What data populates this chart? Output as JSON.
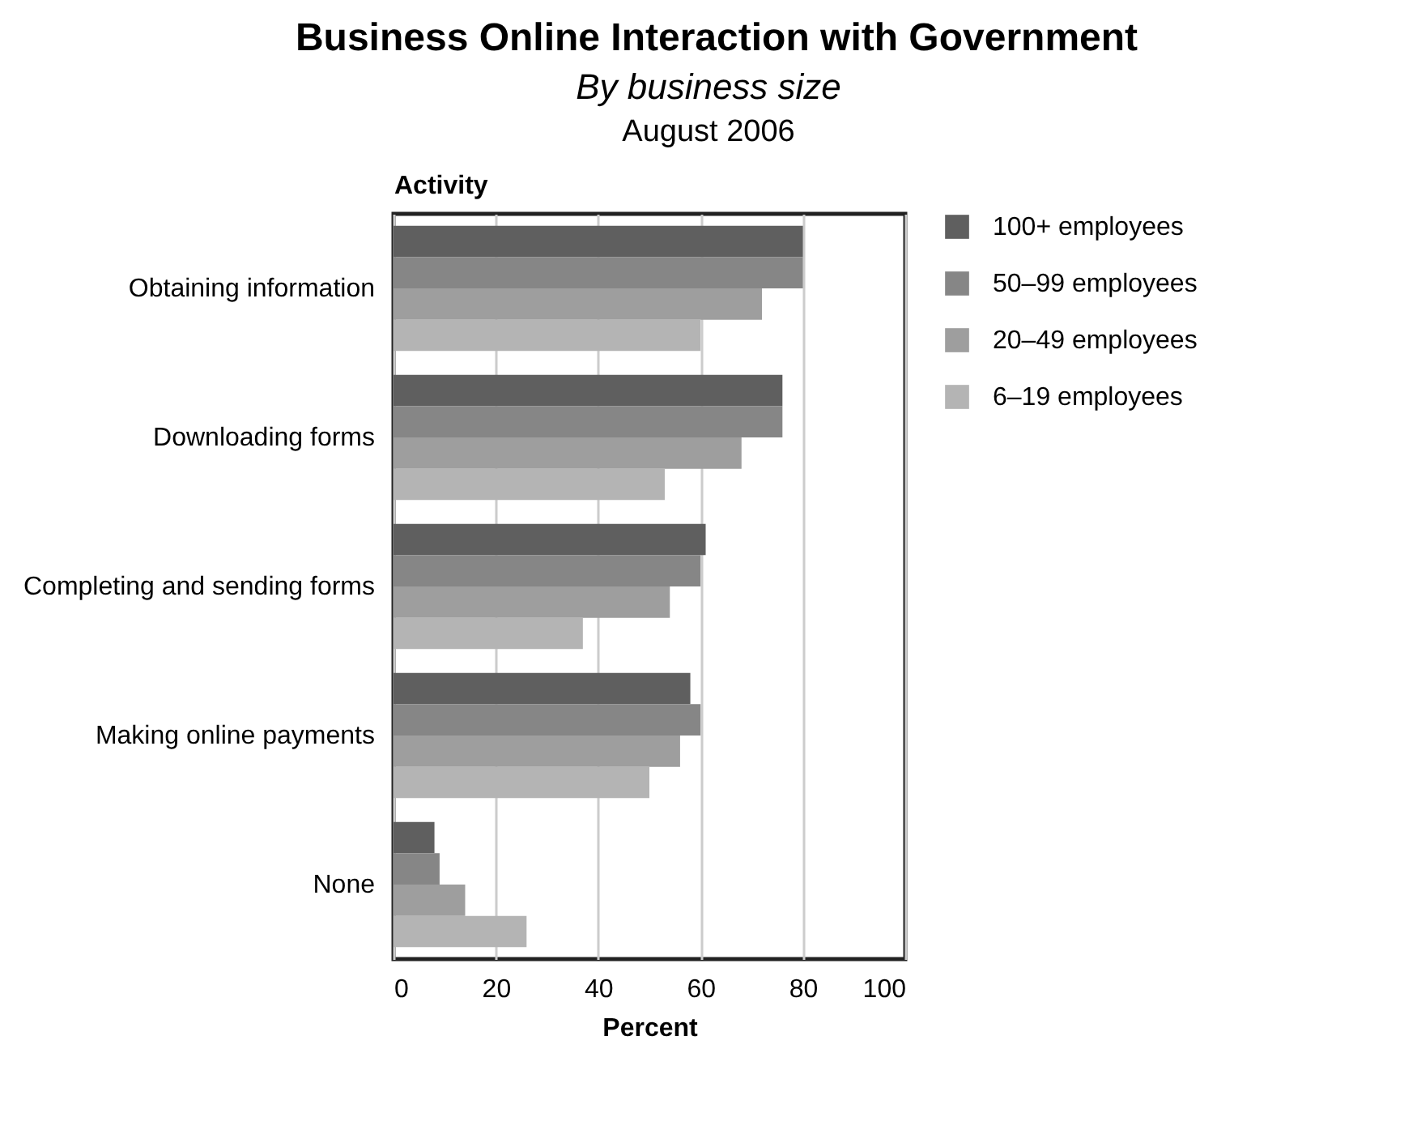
{
  "chart_data": {
    "type": "bar",
    "orientation": "horizontal",
    "title": "Business Online Interaction with Government",
    "subtitle": "By business size",
    "annotations": [
      "August 2006"
    ],
    "xlabel": "Percent",
    "ylabel": "Activity",
    "categories": [
      "Obtaining information",
      "Downloading forms",
      "Completing and sending forms",
      "Making online payments",
      "None"
    ],
    "series": [
      {
        "name": "100+ employees",
        "color": "#5f5f5f",
        "values": [
          80,
          76,
          61,
          58,
          8
        ]
      },
      {
        "name": "50–99 employees",
        "color": "#868686",
        "values": [
          80,
          76,
          60,
          60,
          9
        ]
      },
      {
        "name": "20–49 employees",
        "color": "#9e9e9e",
        "values": [
          72,
          68,
          54,
          56,
          14
        ]
      },
      {
        "name": "6–19 employees",
        "color": "#b4b4b4",
        "values": [
          60,
          53,
          37,
          50,
          26
        ]
      }
    ],
    "xlim": [
      0,
      100
    ],
    "xticks": [
      0,
      20,
      40,
      60,
      80,
      100
    ],
    "grid": "x",
    "legend": "top right"
  }
}
